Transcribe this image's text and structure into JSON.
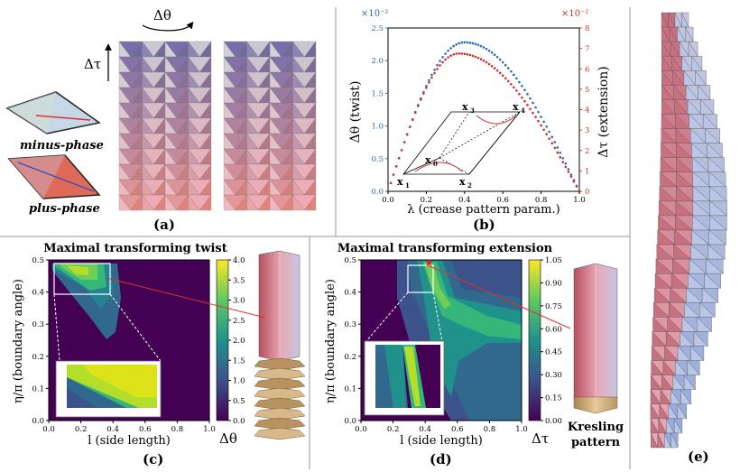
{
  "panels": {
    "a": {
      "label": "(a)",
      "twist_symbol": "Δθ",
      "extension_symbol": "Δτ",
      "minus_label": "minus-phase",
      "plus_label": "plus-phase"
    },
    "b": {
      "label": "(b)",
      "inset_points": [
        "x",
        "x",
        "x",
        "x",
        "x"
      ],
      "inset_subscripts": [
        "1",
        "2",
        "0",
        "3",
        "4"
      ]
    },
    "c": {
      "label": "(c)",
      "colorbar_ticks": [
        "0.0",
        "0.5",
        "1.0",
        "1.5",
        "2.0",
        "2.5",
        "3.0",
        "3.5",
        "4.0"
      ],
      "colorbar_label": "Δθ"
    },
    "d": {
      "label": "(d)",
      "colorbar_ticks": [
        "0.00",
        "0.15",
        "0.30",
        "0.45",
        "0.60",
        "0.75",
        "0.90",
        "1.05"
      ],
      "colorbar_label": "Δτ",
      "kresling_line1": "Kresling",
      "kresling_line2": "pattern"
    },
    "e": {
      "label": "(e)"
    }
  },
  "chart_data": [
    {
      "id": "b",
      "type": "scatter",
      "title": "",
      "xlabel": "λ (crease pattern param.)",
      "ylabel": "Δθ (twist)",
      "ylabel_right": "Δτ (extension)",
      "xlim": [
        0,
        1
      ],
      "ylim": [
        0,
        2.5
      ],
      "ylim_right": [
        0,
        8
      ],
      "x_ticks": [
        "0.0",
        "0.2",
        "0.4",
        "0.6",
        "0.8",
        "1.0"
      ],
      "y_ticks": [
        "0.0",
        "0.5",
        "1.0",
        "1.5",
        "2.0",
        "2.5"
      ],
      "y_ticks_right": [
        "0",
        "1",
        "2",
        "3",
        "4",
        "5",
        "6",
        "7",
        "8"
      ],
      "left_exponent": "×10⁻²",
      "right_exponent": "×10⁻²",
      "series": [
        {
          "name": "twist",
          "axis": "left",
          "color": "#2b6cb0",
          "peak_x": 0.4,
          "peak_y": 2.28
        },
        {
          "name": "extension",
          "axis": "right",
          "color": "#d0312d",
          "peak_x": 0.37,
          "peak_y": 6.75
        }
      ]
    },
    {
      "id": "c",
      "type": "heatmap",
      "title": "Maximal transforming twist",
      "xlabel": "l (side length)",
      "ylabel": "η/π (boundary angle)",
      "xlim": [
        0,
        1
      ],
      "ylim": [
        0,
        0.5
      ],
      "x_ticks": [
        "0.0",
        "0.2",
        "0.4",
        "0.6",
        "0.8",
        "1.0"
      ],
      "y_ticks": [
        "0.0",
        "0.1",
        "0.2",
        "0.3",
        "0.4",
        "0.5"
      ],
      "vrange": [
        0,
        4
      ]
    },
    {
      "id": "d",
      "type": "heatmap",
      "title": "Maximal transforming extension",
      "xlabel": "l (side length)",
      "ylabel": "η/π (boundary angle)",
      "xlim": [
        0,
        1
      ],
      "ylim": [
        0,
        0.5
      ],
      "x_ticks": [
        "0.0",
        "0.2",
        "0.4",
        "0.6",
        "0.8",
        "1.0"
      ],
      "y_ticks": [
        "0.0",
        "0.1",
        "0.2",
        "0.3",
        "0.4",
        "0.5"
      ],
      "vrange": [
        0,
        1.05
      ]
    }
  ]
}
